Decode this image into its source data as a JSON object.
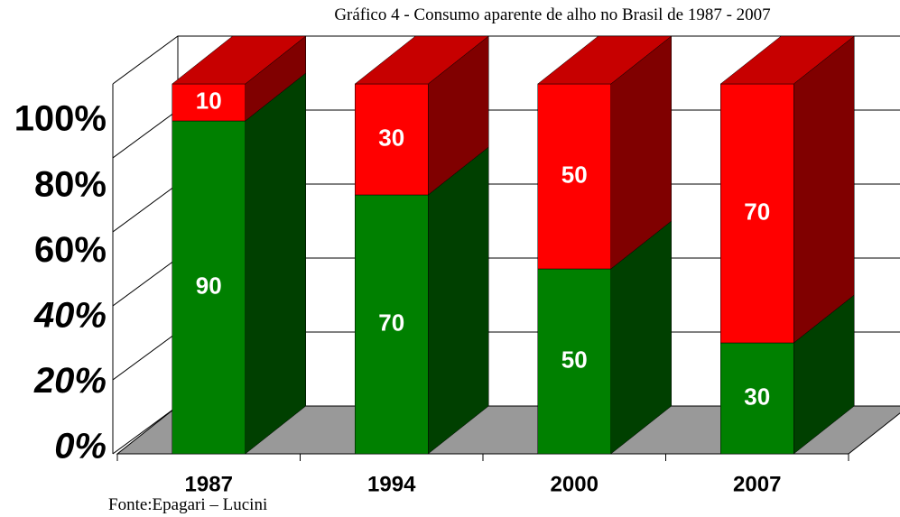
{
  "chart_data": {
    "type": "bar3d_stacked",
    "title": "Gráfico 4 -  Consumo aparente de alho no Brasil de 1987 - 2007",
    "source": "Fonte:Epagari – Lucini",
    "categories": [
      "1987",
      "1994",
      "2000",
      "2007"
    ],
    "series": [
      {
        "color": "#008000",
        "values": [
          90,
          70,
          50,
          30
        ]
      },
      {
        "color": "#ff0000",
        "values": [
          10,
          30,
          50,
          70
        ]
      }
    ],
    "ylim": [
      0,
      100
    ],
    "yticks": [
      {
        "value": 0,
        "label": "0%"
      },
      {
        "value": 20,
        "label": "20%"
      },
      {
        "value": 40,
        "label": "40%"
      },
      {
        "value": 60,
        "label": "60%"
      },
      {
        "value": 80,
        "label": "80%"
      },
      {
        "value": 100,
        "label": "100%"
      }
    ],
    "grid": true
  }
}
